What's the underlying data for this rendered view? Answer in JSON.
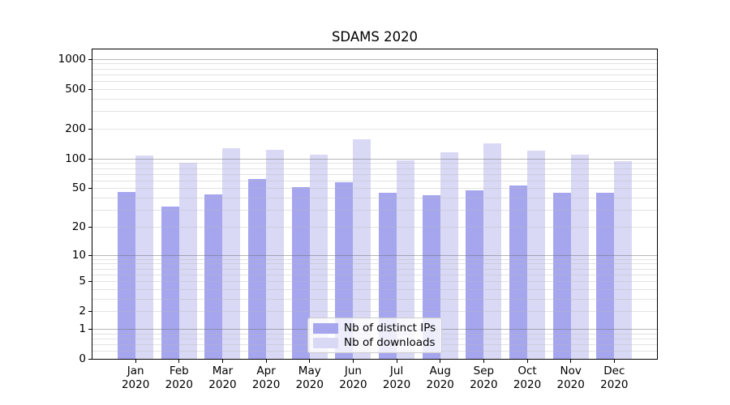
{
  "chart_data": {
    "type": "bar",
    "title": "SDAMS 2020",
    "categories": [
      "Jan",
      "Feb",
      "Mar",
      "Apr",
      "May",
      "Jun",
      "Jul",
      "Aug",
      "Sep",
      "Oct",
      "Nov",
      "Dec"
    ],
    "category_year": "2020",
    "series": [
      {
        "name": "Nb of distinct IPs",
        "color": "#a6a6ef",
        "values": [
          46,
          33,
          44,
          63,
          52,
          58,
          45,
          43,
          48,
          54,
          45,
          45
        ]
      },
      {
        "name": "Nb of downloads",
        "color": "#d9d9f6",
        "values": [
          109,
          92,
          129,
          123,
          111,
          158,
          96,
          116,
          144,
          122,
          111,
          94
        ]
      }
    ],
    "xlabel": "",
    "ylabel": "",
    "yscale": "log1p",
    "ylim": [
      0,
      1250
    ],
    "y_ticks": [
      1000,
      500,
      200,
      100,
      50,
      20,
      10,
      5,
      2,
      1,
      0
    ],
    "grid": true,
    "legend_position": "lower-center"
  },
  "colors": {
    "background": "#ffffff",
    "spine": "#000000",
    "major_grid": "#b6b6b6",
    "minor_grid": "#e3e3e3",
    "legend_border": "#cccccc"
  }
}
